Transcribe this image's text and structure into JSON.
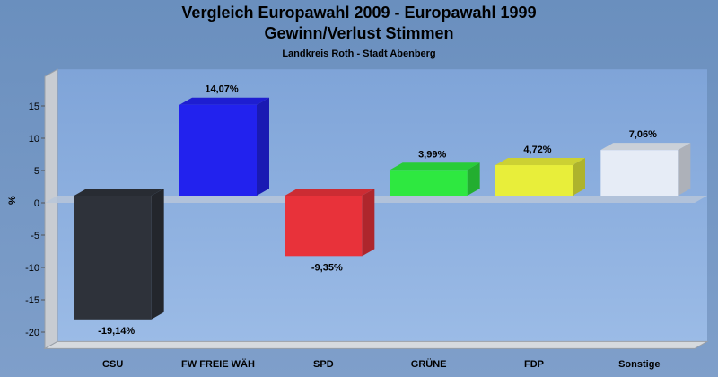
{
  "chart_data": {
    "type": "bar",
    "title": "Vergleich Europawahl 2009 - Europawahl 1999",
    "subtitle": "Gewinn/Verlust Stimmen",
    "subtitle2": "Landkreis Roth - Stadt Abenberg",
    "ylabel": "%",
    "ylim": [
      -22,
      19
    ],
    "yticks": [
      15,
      10,
      5,
      0,
      -5,
      -10,
      -15,
      -20
    ],
    "grid": false,
    "categories": [
      "CSU",
      "FW FREIE WÄH",
      "SPD",
      "GRÜNE",
      "FDP",
      "Sonstige"
    ],
    "values": [
      -19.14,
      14.07,
      -9.35,
      3.99,
      4.72,
      7.06
    ],
    "value_labels": [
      "-19,14%",
      "14,07%",
      "-9,35%",
      "3,99%",
      "4,72%",
      "7,06%"
    ],
    "colors": [
      "#2e323a",
      "#2222ee",
      "#e8323a",
      "#2ee840",
      "#e8ee3a",
      "#e6ecf6"
    ]
  }
}
